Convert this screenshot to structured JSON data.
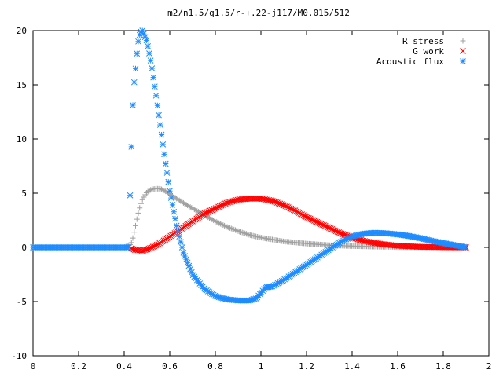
{
  "chart_data": {
    "type": "scatter",
    "title": "m2/n1.5/q1.5/r-+.22-j117/M0.015/512",
    "xlabel": "",
    "ylabel": "",
    "xlim": [
      0,
      2
    ],
    "ylim": [
      -10,
      20
    ],
    "xticks": [
      "0",
      "0.2",
      "0.4",
      "0.6",
      "0.8",
      "1",
      "1.2",
      "1.4",
      "1.6",
      "1.8",
      "2"
    ],
    "yticks": [
      "-10",
      "-5",
      "0",
      "5",
      "10",
      "15",
      "20"
    ],
    "legend_position": "top-right",
    "grid": false,
    "series": [
      {
        "name": "R stress",
        "marker": "+",
        "color": "#a0a0a0",
        "x": [
          0.0,
          0.1,
          0.2,
          0.3,
          0.4,
          0.43,
          0.44,
          0.45,
          0.46,
          0.47,
          0.48,
          0.49,
          0.5,
          0.52,
          0.54,
          0.56,
          0.58,
          0.6,
          0.63,
          0.66,
          0.7,
          0.75,
          0.8,
          0.85,
          0.9,
          0.95,
          1.0,
          1.1,
          1.2,
          1.3,
          1.4,
          1.5,
          1.6,
          1.7,
          1.8,
          1.9
        ],
        "y": [
          0.0,
          0.0,
          0.0,
          0.0,
          0.0,
          0.3,
          1.0,
          2.0,
          3.0,
          3.8,
          4.4,
          4.8,
          5.1,
          5.35,
          5.42,
          5.4,
          5.2,
          4.9,
          4.5,
          4.1,
          3.6,
          3.0,
          2.4,
          1.9,
          1.5,
          1.15,
          0.9,
          0.55,
          0.35,
          0.2,
          0.12,
          0.07,
          0.04,
          0.02,
          0.01,
          0.0
        ]
      },
      {
        "name": "G work",
        "marker": "x",
        "color": "#ff0000",
        "x": [
          0.43,
          0.45,
          0.48,
          0.5,
          0.55,
          0.6,
          0.65,
          0.7,
          0.75,
          0.8,
          0.85,
          0.9,
          0.95,
          1.0,
          1.05,
          1.1,
          1.15,
          1.2,
          1.25,
          1.3,
          1.35,
          1.4,
          1.45,
          1.5,
          1.55,
          1.6,
          1.7,
          1.8,
          1.9
        ],
        "y": [
          -0.1,
          -0.25,
          -0.3,
          -0.2,
          0.3,
          1.0,
          1.7,
          2.4,
          3.1,
          3.6,
          4.1,
          4.4,
          4.5,
          4.5,
          4.3,
          3.9,
          3.4,
          2.8,
          2.3,
          1.8,
          1.3,
          0.9,
          0.6,
          0.4,
          0.25,
          0.15,
          0.05,
          0.02,
          0.0
        ]
      },
      {
        "name": "Acoustic flux",
        "marker": "*",
        "color": "#1e8cff",
        "x": [
          0.0,
          0.1,
          0.2,
          0.3,
          0.4,
          0.42,
          0.43,
          0.44,
          0.45,
          0.46,
          0.47,
          0.48,
          0.5,
          0.52,
          0.54,
          0.56,
          0.58,
          0.6,
          0.63,
          0.66,
          0.7,
          0.75,
          0.8,
          0.85,
          0.9,
          0.95,
          0.98,
          1.0,
          1.02,
          1.05,
          1.1,
          1.15,
          1.2,
          1.25,
          1.3,
          1.35,
          1.4,
          1.45,
          1.5,
          1.55,
          1.6,
          1.65,
          1.7,
          1.75,
          1.8,
          1.85,
          1.9
        ],
        "y": [
          0.0,
          0.0,
          0.0,
          0.0,
          0.0,
          0.0,
          8.0,
          14.4,
          16.5,
          18.8,
          19.8,
          20.0,
          19.0,
          16.8,
          14.0,
          11.0,
          8.0,
          5.2,
          2.0,
          -0.5,
          -2.5,
          -3.8,
          -4.5,
          -4.8,
          -4.9,
          -4.9,
          -4.7,
          -4.2,
          -3.7,
          -3.6,
          -3.0,
          -2.3,
          -1.6,
          -0.9,
          -0.2,
          0.5,
          1.0,
          1.25,
          1.35,
          1.3,
          1.2,
          1.05,
          0.85,
          0.6,
          0.4,
          0.2,
          0.0
        ]
      }
    ]
  }
}
